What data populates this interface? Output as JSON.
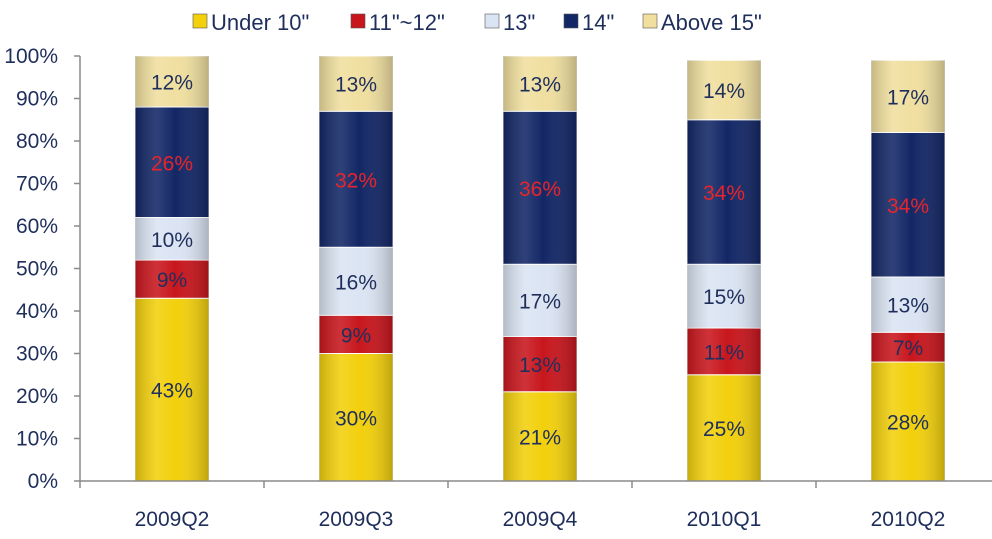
{
  "chart_data": {
    "type": "bar",
    "stacked": true,
    "categories": [
      "2009Q2",
      "2009Q3",
      "2009Q4",
      "2010Q1",
      "2010Q2"
    ],
    "series": [
      {
        "name": "Under 10\"",
        "values": [
          43,
          30,
          21,
          25,
          28
        ],
        "labels": [
          "43%",
          "30%",
          "21%",
          "25%",
          "28%"
        ],
        "color": "#f2d00c",
        "label_color": "#1f2f5c"
      },
      {
        "name": "11\"~12\"",
        "values": [
          9,
          9,
          13,
          11,
          7
        ],
        "labels": [
          "9%",
          "9%",
          "13%",
          "11%",
          "7%"
        ],
        "color": "#c8161d",
        "label_color": "#1f2f5c"
      },
      {
        "name": "13\"",
        "values": [
          10,
          16,
          17,
          15,
          13
        ],
        "labels": [
          "10%",
          "16%",
          "17%",
          "15%",
          "13%"
        ],
        "color": "#dbe4f3",
        "label_color": "#1f2f5c"
      },
      {
        "name": "14\"",
        "values": [
          26,
          32,
          36,
          34,
          34
        ],
        "labels": [
          "26%",
          "32%",
          "36%",
          "34%",
          "34%"
        ],
        "color": "#132766",
        "label_color": "#e8242b"
      },
      {
        "name": "Above 15\"",
        "values": [
          12,
          13,
          13,
          14,
          17
        ],
        "labels": [
          "12%",
          "13%",
          "13%",
          "14%",
          "17%"
        ],
        "color": "#f0df9f",
        "label_color": "#1f2f5c"
      }
    ],
    "yticks": [
      "0%",
      "10%",
      "20%",
      "30%",
      "40%",
      "50%",
      "60%",
      "70%",
      "80%",
      "90%",
      "100%"
    ],
    "ylim": [
      0,
      100
    ],
    "legend_position": "top"
  }
}
